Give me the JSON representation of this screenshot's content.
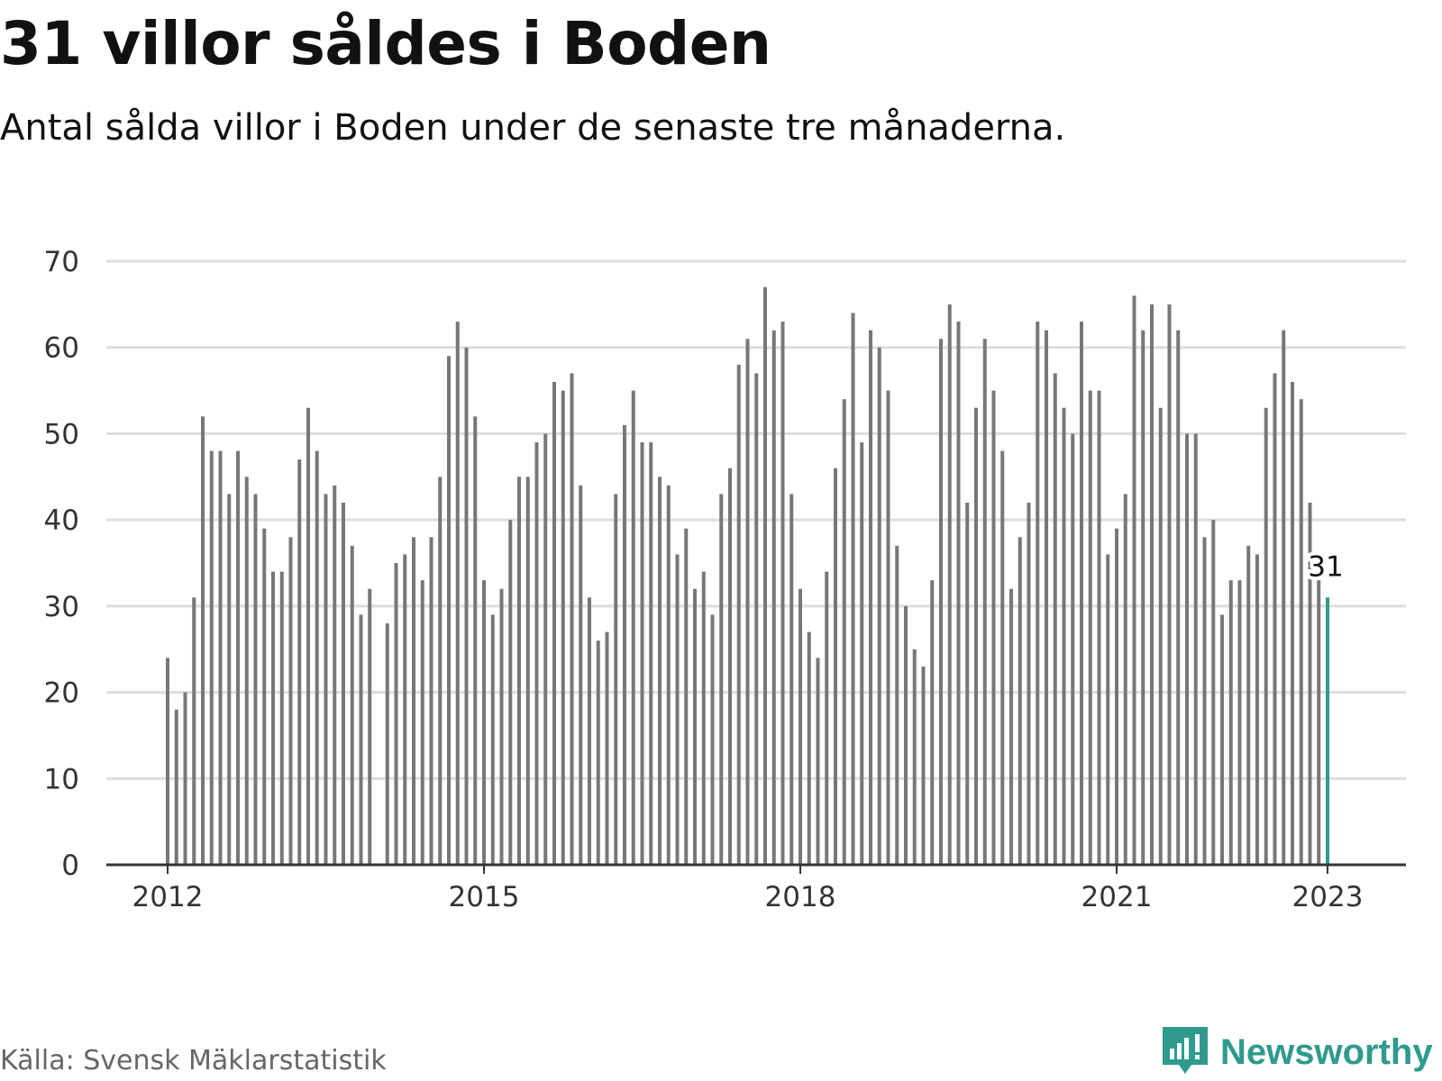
{
  "title": "31 villor såldes i Boden",
  "subtitle": "Antal sålda villor i Boden under de senaste tre månaderna.",
  "source": "Källa: Svensk Mäklarstatistik",
  "brand": "Newsworthy",
  "colors": {
    "bar": "#77767b",
    "highlight": "#2f9a8d",
    "grid": "#dddddd",
    "axis": "#333333",
    "brand": "#2f9a8d"
  },
  "chart_data": {
    "type": "bar",
    "title": "31 villor såldes i Boden",
    "xlabel": "",
    "ylabel": "",
    "ylim": [
      0,
      70
    ],
    "yticks": [
      0,
      10,
      20,
      30,
      40,
      50,
      60,
      70
    ],
    "x_start": "2012-01",
    "x_tick_labels": [
      {
        "label": "2012",
        "index": 0
      },
      {
        "label": "2015",
        "index": 36
      },
      {
        "label": "2018",
        "index": 72
      },
      {
        "label": "2021",
        "index": 108
      },
      {
        "label": "2023",
        "index": 132
      }
    ],
    "values": [
      24,
      18,
      20,
      31,
      52,
      48,
      48,
      43,
      48,
      45,
      43,
      39,
      34,
      34,
      38,
      47,
      53,
      48,
      43,
      44,
      42,
      37,
      29,
      32,
      null,
      28,
      35,
      36,
      38,
      33,
      38,
      45,
      59,
      63,
      60,
      52,
      33,
      29,
      32,
      40,
      45,
      45,
      49,
      50,
      56,
      55,
      57,
      44,
      31,
      26,
      27,
      43,
      51,
      55,
      49,
      49,
      45,
      44,
      36,
      39,
      32,
      34,
      29,
      43,
      46,
      58,
      61,
      57,
      67,
      62,
      63,
      43,
      32,
      27,
      24,
      34,
      46,
      54,
      64,
      49,
      62,
      60,
      55,
      37,
      30,
      25,
      23,
      33,
      61,
      65,
      63,
      42,
      53,
      61,
      55,
      48,
      32,
      38,
      42,
      63,
      62,
      57,
      53,
      50,
      63,
      55,
      55,
      36,
      39,
      43,
      66,
      62,
      65,
      53,
      65,
      62,
      50,
      50,
      38,
      40,
      29,
      33,
      33,
      37,
      36,
      53,
      57,
      62,
      56,
      54,
      42,
      33,
      31
    ],
    "highlight": {
      "index": 132,
      "value": 31,
      "label": "31"
    }
  }
}
